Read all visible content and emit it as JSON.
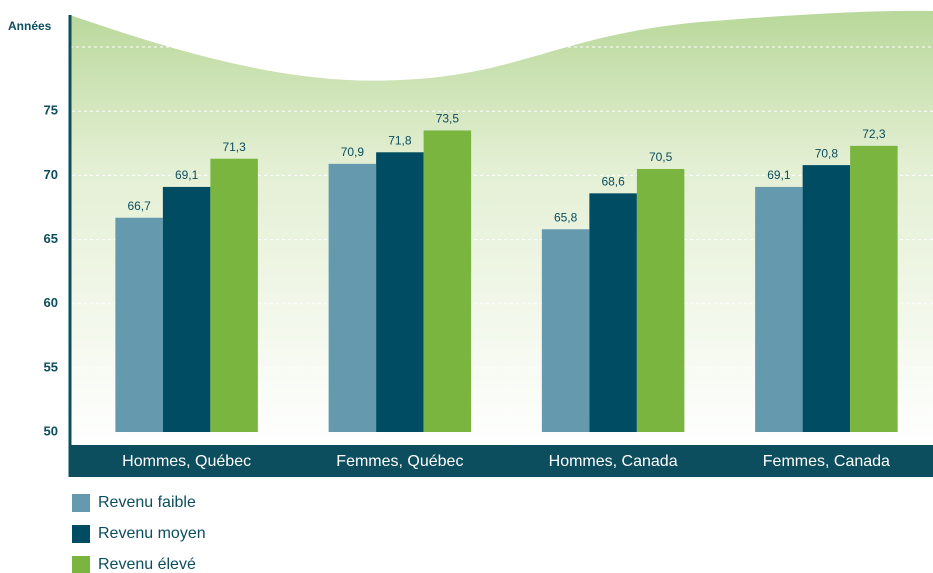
{
  "chart_data": {
    "type": "bar",
    "y_label": "Années",
    "categories": [
      "Hommes, Québec",
      "Femmes, Québec",
      "Hommes, Canada",
      "Femmes, Canada"
    ],
    "series": [
      {
        "name": "Revenu faible",
        "color": "#6499ae",
        "values": [
          66.7,
          70.9,
          65.8,
          69.1
        ],
        "value_labels": [
          "66,7",
          "70,9",
          "65,8",
          "69,1"
        ]
      },
      {
        "name": "Revenu moyen",
        "color": "#004d63",
        "values": [
          69.1,
          71.8,
          68.6,
          70.8
        ],
        "value_labels": [
          "69,1",
          "71,8",
          "68,6",
          "70,8"
        ]
      },
      {
        "name": "Revenu élevé",
        "color": "#7ab540",
        "values": [
          71.3,
          73.5,
          70.5,
          72.3
        ],
        "value_labels": [
          "71,3",
          "73,5",
          "70,5",
          "72,3"
        ]
      }
    ],
    "ylim": [
      50,
      82.5
    ],
    "yticks": [
      50,
      55,
      60,
      65,
      70,
      75
    ],
    "grid": true
  }
}
